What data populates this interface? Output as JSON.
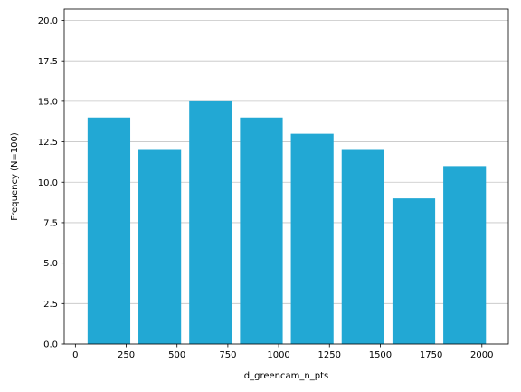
{
  "chart_data": {
    "type": "bar",
    "title": "",
    "xlabel": "d_greencam_n_pts",
    "ylabel": "Frequency (N=100)",
    "bar_color": "#22a8d4",
    "grid": "y",
    "xlim": [
      -55,
      2130
    ],
    "ylim": [
      0,
      20.7
    ],
    "x_ticks": [
      0,
      250,
      500,
      750,
      1000,
      1250,
      1500,
      1750,
      2000
    ],
    "y_ticks": [
      0.0,
      2.5,
      5.0,
      7.5,
      10.0,
      12.5,
      15.0,
      17.5,
      20.0
    ],
    "x_tick_labels": [
      "0",
      "250",
      "500",
      "750",
      "1000",
      "1250",
      "1500",
      "1750",
      "2000"
    ],
    "y_tick_labels": [
      "0.0",
      "2.5",
      "5.0",
      "7.5",
      "10.0",
      "12.5",
      "15.0",
      "17.5",
      "20.0"
    ],
    "bins": [
      {
        "start": 60,
        "end": 270,
        "value": 14
      },
      {
        "start": 310,
        "end": 520,
        "value": 12
      },
      {
        "start": 560,
        "end": 770,
        "value": 15
      },
      {
        "start": 810,
        "end": 1020,
        "value": 14
      },
      {
        "start": 1060,
        "end": 1270,
        "value": 13
      },
      {
        "start": 1310,
        "end": 1520,
        "value": 12
      },
      {
        "start": 1560,
        "end": 1770,
        "value": 9
      },
      {
        "start": 1810,
        "end": 2020,
        "value": 11
      }
    ]
  }
}
